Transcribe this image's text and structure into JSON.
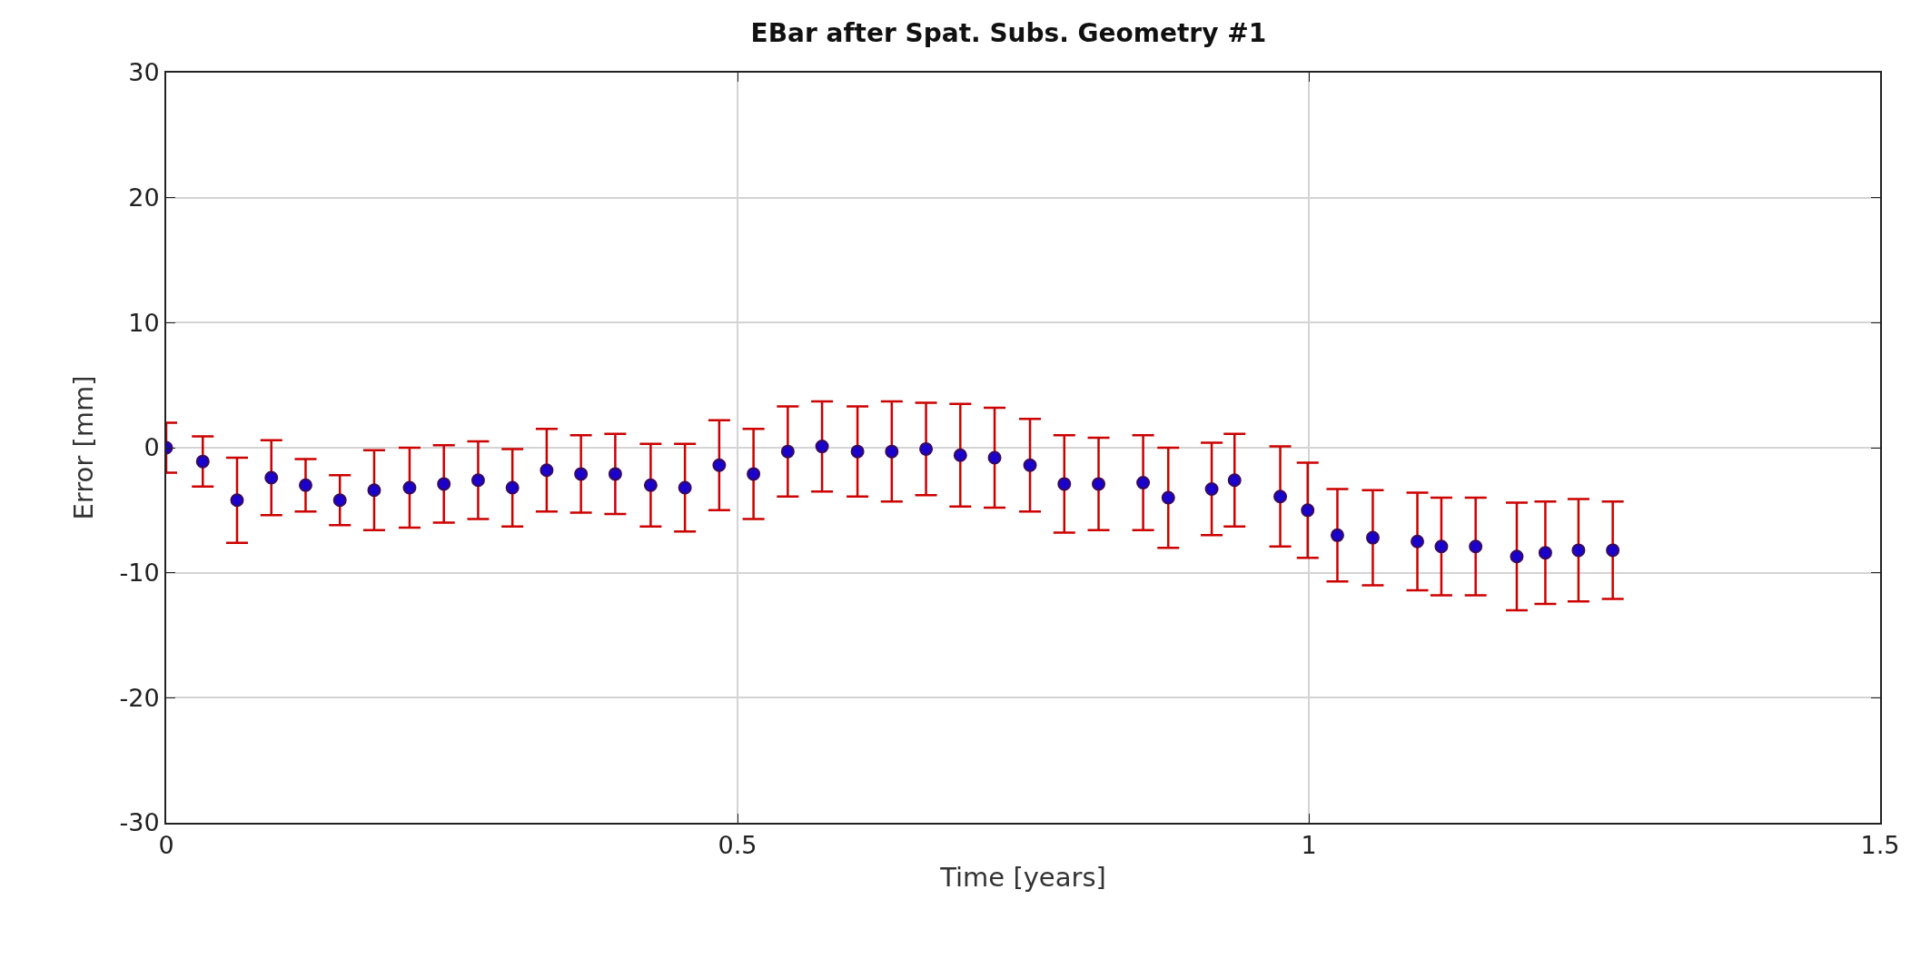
{
  "chart_data": {
    "type": "scatter",
    "title": "EBar after Spat. Subs. Geometry #1",
    "xlabel": "Time [years]",
    "ylabel": "Error [mm]",
    "x": [
      0,
      0.032,
      0.062,
      0.092,
      0.122,
      0.152,
      0.182,
      0.213,
      0.243,
      0.273,
      0.303,
      0.333,
      0.363,
      0.393,
      0.424,
      0.454,
      0.484,
      0.514,
      0.544,
      0.574,
      0.605,
      0.635,
      0.665,
      0.695,
      0.725,
      0.756,
      0.786,
      0.816,
      0.855,
      0.877,
      0.915,
      0.935,
      0.975,
      0.999,
      1.025,
      1.056,
      1.095,
      1.116,
      1.146,
      1.182,
      1.207,
      1.236,
      1.266
    ],
    "series": [
      {
        "color": "#1a00cc",
        "values": [
          0,
          -1.1,
          -4.2,
          -2.4,
          -3.0,
          -4.2,
          -3.4,
          -3.2,
          -2.9,
          -2.6,
          -3.2,
          -1.8,
          -2.1,
          -2.1,
          -3.0,
          -3.2,
          -1.4,
          -2.1,
          -0.3,
          0.1,
          -0.3,
          -0.3,
          -0.1,
          -0.6,
          -0.8,
          -1.4,
          -2.9,
          -2.9,
          -2.8,
          -4.0,
          -3.3,
          -2.6,
          -3.9,
          -5.0,
          -7.0,
          -7.2,
          -7.5,
          -7.9,
          -7.9,
          -8.7,
          -8.4,
          -8.2,
          -8.2
        ],
        "errors": [
          2.0,
          2.0,
          3.4,
          3.0,
          2.1,
          2.0,
          3.2,
          3.2,
          3.1,
          3.1,
          3.1,
          3.3,
          3.1,
          3.2,
          3.3,
          3.5,
          3.6,
          3.6,
          3.6,
          3.6,
          3.6,
          4.0,
          3.7,
          4.1,
          4.0,
          3.7,
          3.9,
          3.7,
          3.8,
          4.0,
          3.7,
          3.7,
          4.0,
          3.8,
          3.7,
          3.8,
          3.9,
          3.9,
          3.9,
          4.3,
          4.1,
          4.1,
          3.9
        ]
      }
    ],
    "xlim": [
      0,
      1.5
    ],
    "xticks": [
      0,
      0.5,
      1,
      1.5
    ],
    "ylim": [
      -30,
      30
    ],
    "yticks": [
      -30,
      -20,
      -10,
      0,
      10,
      20,
      30
    ],
    "grid": true,
    "marker": "circle"
  }
}
